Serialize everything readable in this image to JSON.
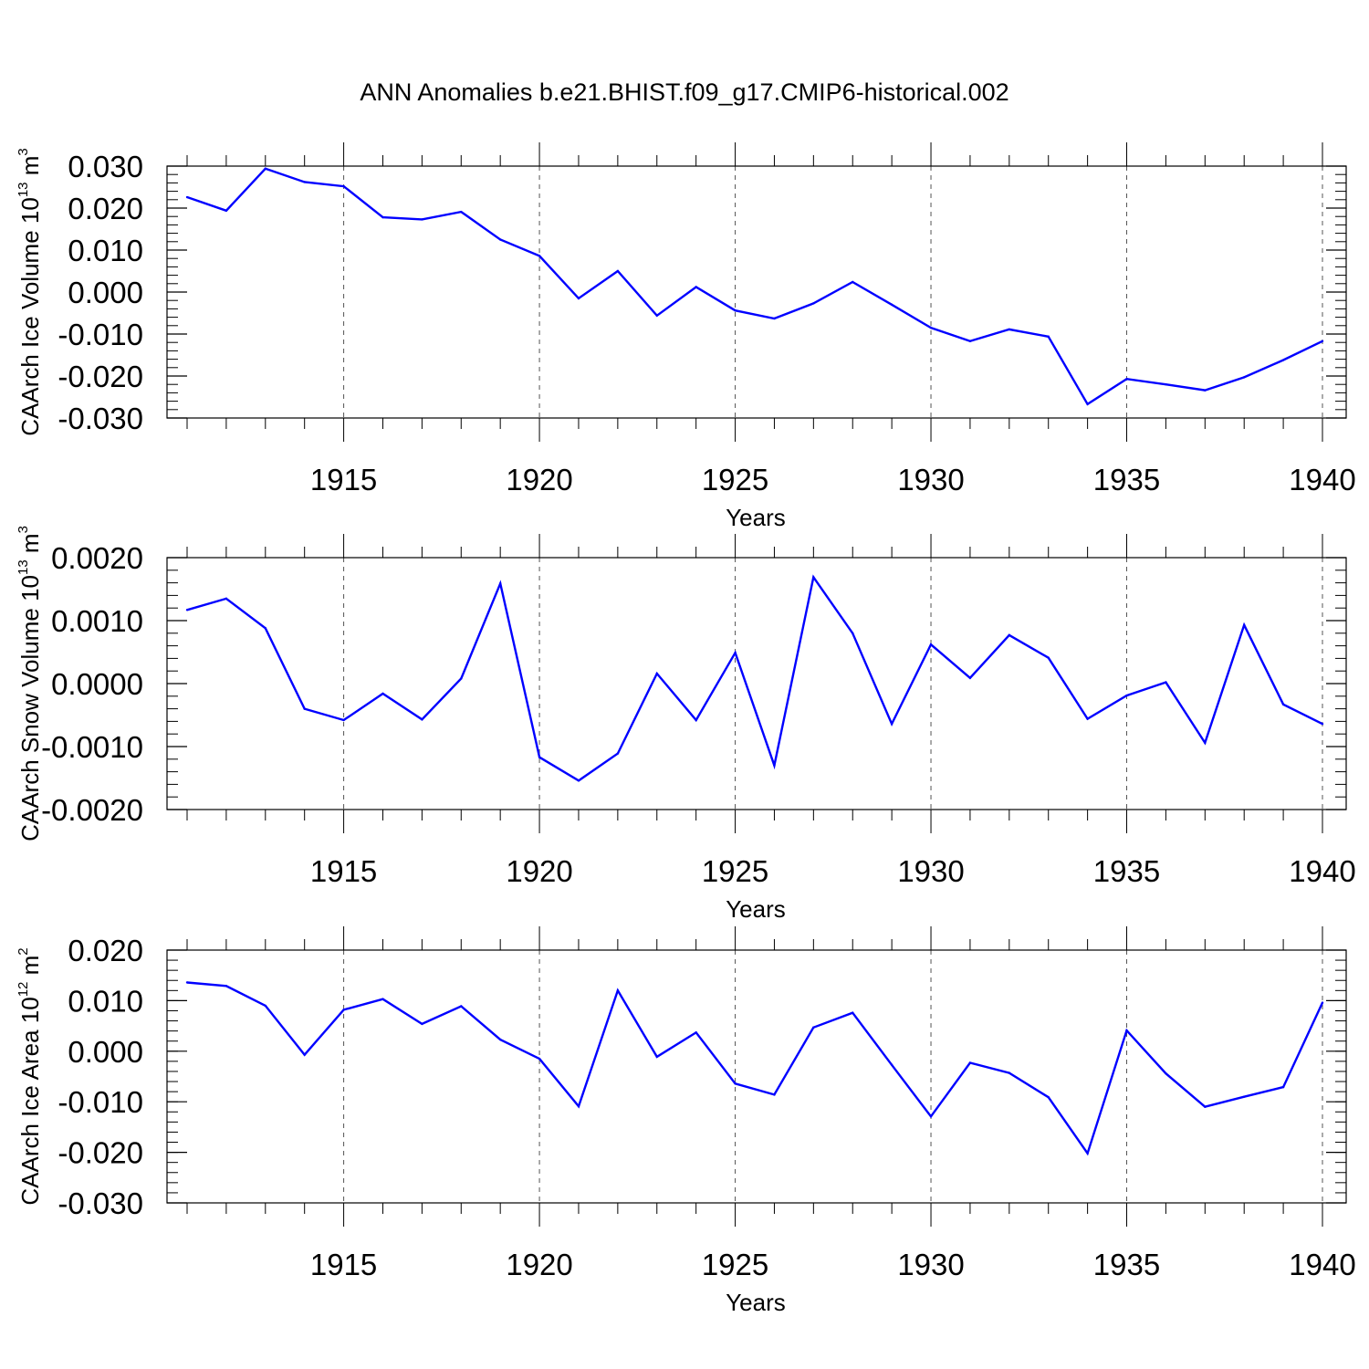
{
  "title": "ANN Anomalies b.e21.BHIST.f09_g17.CMIP6-historical.002",
  "colors": {
    "series": "#0000ff",
    "axis": "#000000",
    "grid": "#555555",
    "background": "#ffffff"
  },
  "chart_data": [
    {
      "type": "line",
      "ylabel_main": "CAArch Ice Volume 10",
      "ylabel_exp": "13",
      "ylabel_unit": " m",
      "ylabel_unit_exp": "3",
      "xlabel": "Years",
      "xlim": [
        1911,
        1940
      ],
      "ylim": [
        -0.03,
        0.03
      ],
      "yticks": [
        -0.03,
        -0.02,
        -0.01,
        0.0,
        0.01,
        0.02,
        0.03
      ],
      "ytick_labels": [
        "-0.030",
        "-0.020",
        "-0.010",
        "0.000",
        "0.010",
        "0.020",
        "0.030"
      ],
      "ytick_minor_step": 0.002,
      "xticks": [
        1915,
        1920,
        1925,
        1930,
        1935,
        1940
      ],
      "xtick_labels": [
        "1915",
        "1920",
        "1925",
        "1930",
        "1935",
        "1940"
      ],
      "grid": "vertical-dashed",
      "x": [
        1911,
        1912,
        1913,
        1914,
        1915,
        1916,
        1917,
        1918,
        1919,
        1920,
        1921,
        1922,
        1923,
        1924,
        1925,
        1926,
        1927,
        1928,
        1929,
        1930,
        1931,
        1932,
        1933,
        1934,
        1935,
        1936,
        1937,
        1938,
        1939,
        1940
      ],
      "y": [
        0.0226,
        0.0194,
        0.0294,
        0.0262,
        0.0252,
        0.0178,
        0.0173,
        0.0191,
        0.0125,
        0.0086,
        -0.0015,
        0.005,
        -0.0056,
        0.0012,
        -0.0044,
        -0.0063,
        -0.0027,
        0.0024,
        -0.003,
        -0.0085,
        -0.0117,
        -0.0089,
        -0.0106,
        -0.0267,
        -0.0207,
        -0.022,
        -0.0234,
        -0.0203,
        -0.0162,
        -0.0117
      ]
    },
    {
      "type": "line",
      "ylabel_main": "CAArch Snow Volume 10",
      "ylabel_exp": "13",
      "ylabel_unit": " m",
      "ylabel_unit_exp": "3",
      "xlabel": "Years",
      "xlim": [
        1911,
        1940
      ],
      "ylim": [
        -0.002,
        0.002
      ],
      "yticks": [
        -0.002,
        -0.001,
        0.0,
        0.001,
        0.002
      ],
      "ytick_labels": [
        "-0.0020",
        "-0.0010",
        "0.0000",
        "0.0010",
        "0.0020"
      ],
      "ytick_minor_step": 0.0002,
      "xticks": [
        1915,
        1920,
        1925,
        1930,
        1935,
        1940
      ],
      "xtick_labels": [
        "1915",
        "1920",
        "1925",
        "1930",
        "1935",
        "1940"
      ],
      "grid": "vertical-dashed",
      "x": [
        1911,
        1912,
        1913,
        1914,
        1915,
        1916,
        1917,
        1918,
        1919,
        1920,
        1921,
        1922,
        1923,
        1924,
        1925,
        1926,
        1927,
        1928,
        1929,
        1930,
        1931,
        1932,
        1933,
        1934,
        1935,
        1936,
        1937,
        1938,
        1939,
        1940
      ],
      "y": [
        0.00117,
        0.00135,
        0.00088,
        -0.0004,
        -0.00058,
        -0.00016,
        -0.00057,
        8e-05,
        0.00159,
        -0.00117,
        -0.00154,
        -0.00111,
        0.00016,
        -0.00058,
        0.00049,
        -0.0013,
        0.00169,
        0.0008,
        -0.00064,
        0.00062,
        9e-05,
        0.00077,
        0.00041,
        -0.00056,
        -0.00019,
        2e-05,
        -0.00094,
        0.00093,
        -0.00033,
        -0.00064
      ]
    },
    {
      "type": "line",
      "ylabel_main": "CAArch Ice Area 10",
      "ylabel_exp": "12",
      "ylabel_unit": " m",
      "ylabel_unit_exp": "2",
      "xlabel": "Years",
      "xlim": [
        1911,
        1940
      ],
      "ylim": [
        -0.03,
        0.02
      ],
      "yticks": [
        -0.03,
        -0.02,
        -0.01,
        0.0,
        0.01,
        0.02
      ],
      "ytick_labels": [
        "-0.030",
        "-0.020",
        "-0.010",
        "0.000",
        "0.010",
        "0.020"
      ],
      "ytick_minor_step": 0.002,
      "xticks": [
        1915,
        1920,
        1925,
        1930,
        1935,
        1940
      ],
      "xtick_labels": [
        "1915",
        "1920",
        "1925",
        "1930",
        "1935",
        "1940"
      ],
      "grid": "vertical-dashed",
      "x": [
        1911,
        1912,
        1913,
        1914,
        1915,
        1916,
        1917,
        1918,
        1919,
        1920,
        1921,
        1922,
        1923,
        1924,
        1925,
        1926,
        1927,
        1928,
        1929,
        1930,
        1931,
        1932,
        1933,
        1934,
        1935,
        1936,
        1937,
        1938,
        1939,
        1940
      ],
      "y": [
        0.0136,
        0.0129,
        0.009,
        -0.0007,
        0.0082,
        0.0103,
        0.0054,
        0.0089,
        0.0023,
        -0.0015,
        -0.0109,
        0.012,
        -0.0011,
        0.0037,
        -0.0064,
        -0.0086,
        0.0047,
        0.0076,
        -0.0027,
        -0.0129,
        -0.0023,
        -0.0043,
        -0.0091,
        -0.0202,
        0.0041,
        -0.0044,
        -0.011,
        -0.009,
        -0.0071,
        0.0096
      ]
    }
  ]
}
